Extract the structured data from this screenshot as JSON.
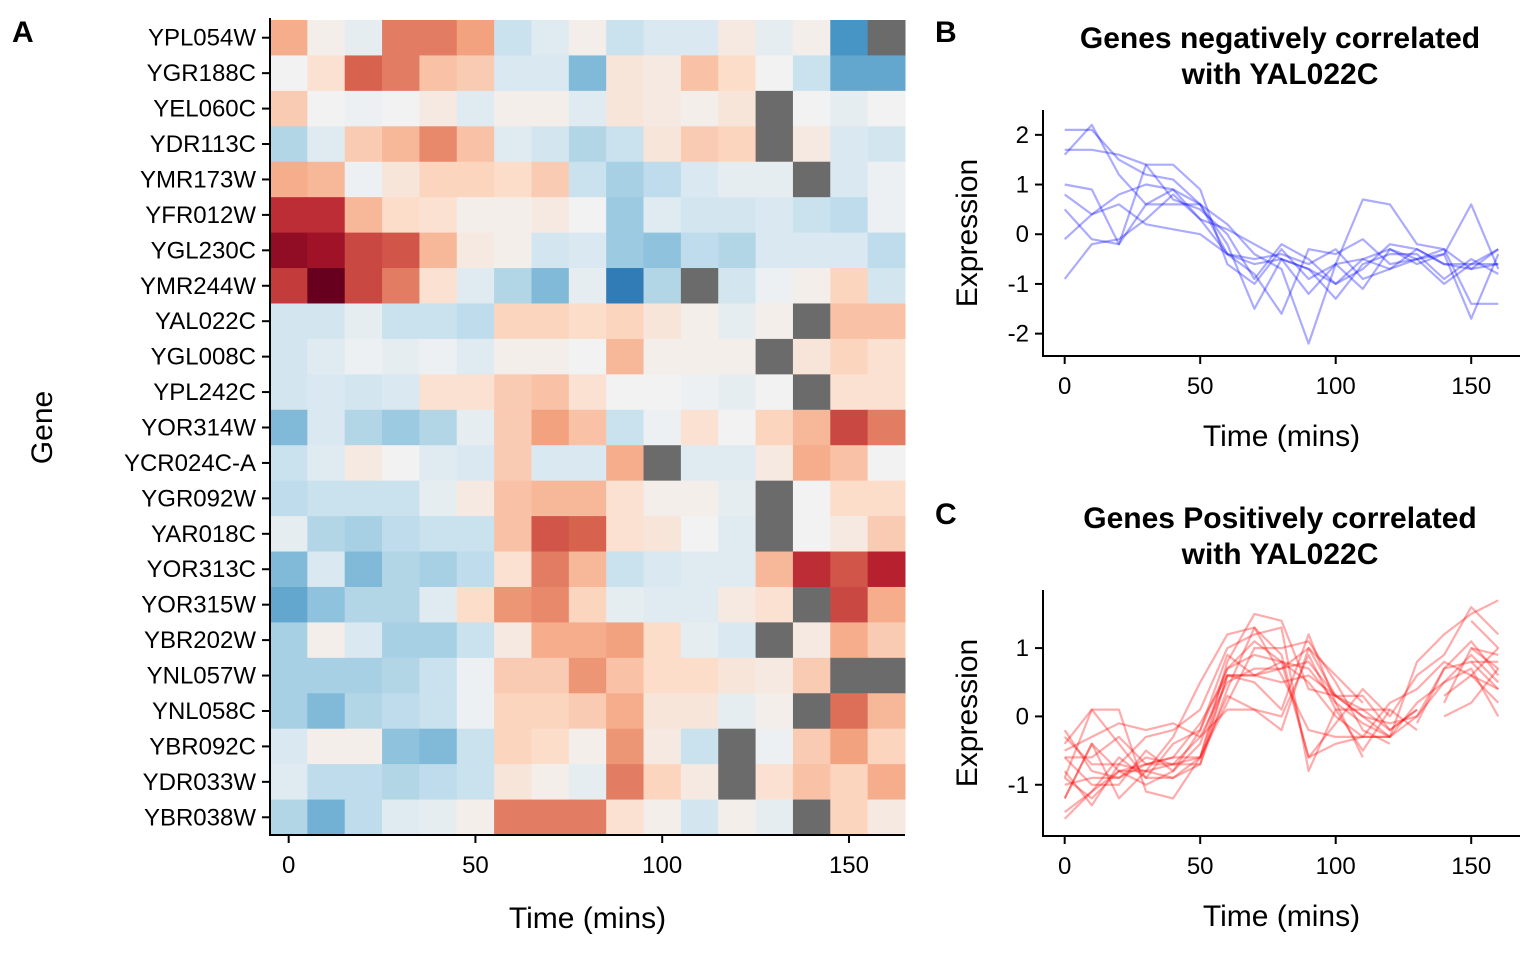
{
  "chart_data": [
    {
      "panel": "A",
      "type": "heatmap",
      "xlabel": "Time (mins)",
      "ylabel": "Gene",
      "x_ticks": [
        0,
        50,
        100,
        150
      ],
      "xlim": [
        -5,
        165
      ],
      "time_points": [
        0,
        10,
        20,
        30,
        40,
        50,
        60,
        70,
        80,
        90,
        100,
        110,
        120,
        130,
        140,
        150,
        160
      ],
      "genes": [
        "YPL054W",
        "YGR188C",
        "YEL060C",
        "YDR113C",
        "YMR173W",
        "YFR012W",
        "YGL230C",
        "YMR244W",
        "YAL022C",
        "YGL008C",
        "YPL242C",
        "YOR314W",
        "YCR024C-A",
        "YGR092W",
        "YAR018C",
        "YOR313C",
        "YOR315W",
        "YBR202W",
        "YNL057W",
        "YNL058C",
        "YBR092C",
        "YDR033W",
        "YBR038W"
      ],
      "missing_color": "#6b6b6b",
      "color_scale": {
        "low": "#1a4f9e",
        "mid": "#f2f2f2",
        "high": "#a50026"
      },
      "values": [
        [
          1.0,
          0.1,
          -0.2,
          1.4,
          1.4,
          1.1,
          -0.6,
          -0.3,
          0.1,
          -0.6,
          -0.4,
          -0.4,
          0.2,
          -0.2,
          0.1,
          -1.6,
          null
        ],
        [
          0.0,
          0.4,
          1.6,
          1.4,
          0.8,
          0.7,
          -0.4,
          -0.4,
          -1.2,
          0.3,
          0.2,
          0.8,
          0.5,
          0.0,
          -0.6,
          -1.4,
          -1.4
        ],
        [
          0.7,
          0.0,
          -0.1,
          0.0,
          0.2,
          -0.3,
          0.1,
          0.1,
          -0.3,
          0.3,
          0.2,
          0.1,
          0.3,
          null,
          0.0,
          -0.2,
          0.0
        ],
        [
          -0.8,
          -0.3,
          0.7,
          0.9,
          1.3,
          0.8,
          -0.3,
          -0.5,
          -0.8,
          -0.6,
          0.3,
          0.7,
          0.6,
          null,
          0.2,
          -0.4,
          -0.5
        ],
        [
          1.0,
          0.9,
          -0.1,
          0.3,
          0.6,
          0.6,
          0.5,
          0.7,
          -0.6,
          -0.9,
          -0.7,
          -0.4,
          -0.2,
          -0.2,
          null,
          -0.4,
          -0.1
        ],
        [
          2.0,
          2.0,
          0.9,
          0.5,
          0.4,
          0.1,
          0.1,
          0.2,
          0.0,
          -1.0,
          -0.3,
          -0.5,
          -0.5,
          -0.4,
          -0.6,
          -0.7,
          -0.1
        ],
        [
          2.4,
          2.3,
          1.8,
          1.7,
          0.9,
          0.2,
          0.1,
          -0.5,
          -0.4,
          -1.0,
          -1.1,
          -0.7,
          -0.8,
          -0.4,
          -0.4,
          -0.4,
          -0.7
        ],
        [
          1.9,
          2.7,
          1.8,
          1.4,
          0.4,
          -0.3,
          -0.8,
          -1.2,
          -0.2,
          -1.9,
          -0.8,
          null,
          -0.5,
          -0.1,
          0.1,
          0.6,
          -0.5
        ],
        [
          -0.5,
          -0.5,
          -0.2,
          -0.6,
          -0.6,
          -0.7,
          0.6,
          0.6,
          0.5,
          0.6,
          0.3,
          0.1,
          -0.2,
          0.1,
          null,
          0.8,
          0.8
        ],
        [
          -0.5,
          -0.3,
          -0.1,
          -0.2,
          -0.1,
          -0.3,
          0.1,
          0.1,
          0.0,
          0.9,
          0.1,
          0.1,
          0.1,
          null,
          0.3,
          0.6,
          0.4
        ],
        [
          -0.5,
          -0.4,
          -0.5,
          -0.4,
          0.4,
          0.4,
          0.7,
          0.8,
          0.4,
          0.0,
          0.0,
          -0.1,
          -0.2,
          0.0,
          null,
          0.4,
          0.4
        ],
        [
          -1.2,
          -0.4,
          -0.8,
          -1.0,
          -0.8,
          -0.2,
          0.7,
          1.1,
          0.8,
          -0.6,
          -0.1,
          0.4,
          0.0,
          0.6,
          0.9,
          1.8,
          1.4
        ],
        [
          -0.6,
          -0.3,
          0.2,
          0.0,
          -0.3,
          -0.4,
          0.7,
          -0.4,
          -0.4,
          1.0,
          null,
          -0.3,
          -0.3,
          0.2,
          1.0,
          0.8,
          0.0
        ],
        [
          -0.7,
          -0.6,
          -0.6,
          -0.6,
          -0.2,
          0.2,
          0.8,
          0.9,
          0.9,
          0.4,
          0.1,
          0.1,
          -0.2,
          null,
          0.0,
          0.5,
          0.5
        ],
        [
          -0.2,
          -0.8,
          -0.9,
          -0.7,
          -0.6,
          -0.6,
          0.8,
          1.7,
          1.6,
          0.4,
          0.3,
          0.0,
          -0.3,
          null,
          0.0,
          0.2,
          0.7
        ],
        [
          -1.2,
          -0.4,
          -1.2,
          -0.8,
          -0.9,
          -0.7,
          0.4,
          1.4,
          0.9,
          -0.6,
          -0.4,
          -0.3,
          -0.3,
          0.9,
          2.0,
          1.7,
          2.1
        ],
        [
          -1.4,
          -1.1,
          -0.8,
          -0.8,
          -0.3,
          0.5,
          1.2,
          1.3,
          0.6,
          -0.2,
          -0.3,
          -0.3,
          0.2,
          0.4,
          null,
          1.8,
          1.0
        ],
        [
          -0.9,
          0.1,
          -0.4,
          -0.9,
          -0.9,
          -0.6,
          0.2,
          1.0,
          1.0,
          1.1,
          0.5,
          -0.2,
          -0.4,
          null,
          0.2,
          1.0,
          0.7
        ],
        [
          -0.9,
          -0.9,
          -0.9,
          -0.8,
          -0.6,
          -0.1,
          0.7,
          0.7,
          1.2,
          0.8,
          0.5,
          0.5,
          0.3,
          0.2,
          0.7,
          null,
          null
        ],
        [
          -0.9,
          -1.2,
          -0.8,
          -0.7,
          -0.6,
          -0.1,
          0.6,
          0.6,
          0.7,
          1.0,
          0.3,
          0.3,
          -0.2,
          0.1,
          null,
          1.5,
          0.9
        ],
        [
          -0.4,
          0.1,
          0.1,
          -1.1,
          -1.2,
          -0.6,
          0.6,
          0.5,
          0.1,
          1.2,
          0.2,
          -0.6,
          null,
          -0.1,
          0.7,
          1.1,
          0.6
        ],
        [
          -0.3,
          -0.7,
          -0.7,
          -0.8,
          -0.7,
          -0.6,
          0.3,
          0.1,
          -0.2,
          1.4,
          0.6,
          0.2,
          null,
          0.4,
          0.8,
          0.6,
          1.0
        ],
        [
          -0.8,
          -1.3,
          -0.7,
          -0.3,
          -0.2,
          0.1,
          1.4,
          1.4,
          1.4,
          0.4,
          0.1,
          -0.5,
          0.1,
          -0.2,
          null,
          0.6,
          0.2
        ]
      ]
    },
    {
      "panel": "B",
      "type": "line",
      "title": "Genes negatively correlated\nwith YAL022C",
      "xlabel": "Time (mins)",
      "ylabel": "Expression",
      "x_ticks": [
        0,
        50,
        100,
        150
      ],
      "y_ticks": [
        -2,
        -1,
        0,
        1,
        2
      ],
      "xlim": [
        -8,
        168
      ],
      "ylim": [
        -2.45,
        2.5
      ],
      "color": "#0000ff",
      "x": [
        0,
        10,
        20,
        30,
        40,
        50,
        60,
        70,
        80,
        90,
        100,
        110,
        120,
        130,
        140,
        150,
        160
      ],
      "series": [
        {
          "values": [
            2.1,
            2.1,
            1.5,
            1.2,
            1.1,
            0.6,
            -0.4,
            -0.6,
            -0.5,
            -1.2,
            -0.6,
            -0.5,
            -0.7,
            -0.3,
            -0.6,
            -0.7,
            -0.3
          ]
        },
        {
          "values": [
            1.7,
            1.7,
            1.6,
            1.4,
            0.7,
            0.5,
            0.0,
            -0.9,
            -0.2,
            -0.5,
            -1.0,
            -0.5,
            -0.3,
            -0.5,
            -0.4,
            -1.7,
            -0.4
          ]
        },
        {
          "values": [
            1.6,
            2.2,
            1.2,
            0.6,
            0.6,
            0.6,
            0.2,
            -0.4,
            -0.7,
            -2.2,
            -0.6,
            -1.1,
            -0.3,
            -0.6,
            -0.4,
            0.6,
            -0.7
          ]
        },
        {
          "values": [
            1.0,
            0.9,
            -0.2,
            1.4,
            1.4,
            0.9,
            -0.6,
            -1.0,
            -0.3,
            -0.9,
            -0.6,
            0.7,
            0.6,
            -0.2,
            -0.3,
            -1.4,
            -1.4
          ]
        },
        {
          "values": [
            0.8,
            0.4,
            0.8,
            1.0,
            0.9,
            0.3,
            0.1,
            -0.2,
            -0.5,
            -0.7,
            -1.0,
            -0.7,
            -0.2,
            -0.3,
            -0.6,
            -0.6,
            -0.6
          ]
        },
        {
          "values": [
            -0.1,
            0.4,
            0.6,
            0.2,
            0.1,
            0.0,
            -0.4,
            -0.5,
            -0.4,
            -0.6,
            -0.3,
            -0.9,
            -0.7,
            -0.5,
            -0.3,
            -0.7,
            -0.6
          ]
        },
        {
          "values": [
            -0.9,
            -0.2,
            -0.1,
            0.3,
            0.8,
            0.3,
            -0.4,
            -0.8,
            -1.6,
            -0.3,
            -0.4,
            -0.1,
            -0.6,
            -0.5,
            -1.0,
            -0.6,
            -0.3
          ]
        },
        {
          "values": [
            0.5,
            -0.1,
            -0.2,
            0.6,
            0.9,
            0.6,
            -0.2,
            -1.5,
            -0.5,
            -0.7,
            -1.3,
            -0.6,
            -0.4,
            -0.4,
            -0.9,
            -0.5,
            -0.8
          ]
        }
      ]
    },
    {
      "panel": "C",
      "type": "line",
      "title": "Genes Positively correlated\nwith YAL022C",
      "xlabel": "Time (mins)",
      "ylabel": "Expression",
      "x_ticks": [
        0,
        50,
        100,
        150
      ],
      "y_ticks": [
        -1,
        0,
        1
      ],
      "xlim": [
        -8,
        168
      ],
      "ylim": [
        -1.75,
        1.85
      ],
      "color": "#ff0000",
      "x": [
        0,
        10,
        20,
        30,
        40,
        50,
        60,
        70,
        80,
        90,
        100,
        110,
        120,
        130,
        140,
        150,
        160
      ],
      "series": [
        {
          "values": [
            -0.6,
            -0.6,
            -0.3,
            -0.7,
            -0.7,
            -0.7,
            0.6,
            0.6,
            0.5,
            0.6,
            0.3,
            0.1,
            -0.2,
            0.1,
            null,
            0.8,
            0.8
          ]
        },
        {
          "values": [
            -0.5,
            -0.3,
            -0.1,
            -0.2,
            -0.1,
            -0.3,
            0.1,
            0.1,
            0.0,
            0.9,
            0.1,
            0.1,
            0.1,
            null,
            0.3,
            0.6,
            0.4
          ]
        },
        {
          "values": [
            -1.2,
            -0.4,
            -0.8,
            -1.0,
            -0.8,
            -0.2,
            0.7,
            1.1,
            0.8,
            -0.6,
            -0.1,
            0.4,
            0.0,
            0.6,
            0.9,
            1.6,
            1.2
          ]
        },
        {
          "values": [
            -0.2,
            -0.8,
            -0.9,
            -0.7,
            -0.6,
            -0.6,
            0.8,
            1.5,
            1.4,
            0.4,
            0.3,
            0.0,
            -0.3,
            null,
            0.0,
            0.2,
            0.7
          ]
        },
        {
          "values": [
            -1.2,
            -0.4,
            -1.2,
            -0.8,
            -0.9,
            -0.7,
            0.4,
            1.3,
            0.9,
            -0.6,
            -0.4,
            -0.3,
            -0.3,
            0.8,
            1.2,
            1.5,
            1.7
          ]
        },
        {
          "values": [
            -1.4,
            -1.1,
            -0.8,
            -0.8,
            -0.3,
            0.5,
            1.2,
            1.3,
            0.6,
            -0.2,
            -0.3,
            -0.3,
            0.2,
            0.4,
            null,
            1.4,
            1.0
          ]
        },
        {
          "values": [
            -0.9,
            0.1,
            -0.4,
            -0.9,
            -0.9,
            -0.6,
            0.2,
            1.0,
            1.0,
            1.1,
            0.5,
            -0.2,
            -0.4,
            null,
            0.2,
            1.0,
            0.7
          ]
        },
        {
          "values": [
            -0.9,
            -1.2,
            -0.8,
            -0.7,
            -0.6,
            -0.1,
            0.6,
            0.6,
            0.7,
            1.0,
            0.3,
            0.3,
            -0.2,
            0.1,
            null,
            1.0,
            0.9
          ]
        },
        {
          "values": [
            -0.4,
            0.1,
            0.1,
            -1.1,
            -1.2,
            -0.6,
            0.6,
            0.5,
            0.1,
            1.2,
            0.2,
            -0.6,
            null,
            -0.1,
            0.7,
            1.1,
            0.6
          ]
        },
        {
          "values": [
            -0.3,
            -0.7,
            -0.7,
            -0.8,
            -0.7,
            -0.6,
            0.3,
            0.1,
            -0.2,
            1.0,
            0.6,
            0.2,
            null,
            0.4,
            0.8,
            0.6,
            1.0
          ]
        },
        {
          "values": [
            -0.8,
            -1.3,
            -0.7,
            -0.3,
            -0.2,
            0.1,
            1.0,
            1.2,
            1.3,
            -0.8,
            0.1,
            -0.5,
            0.1,
            -0.2,
            null,
            0.6,
            0.2
          ]
        },
        {
          "values": [
            -0.6,
            -1.0,
            -1.0,
            -0.5,
            -0.8,
            -0.4,
            0.7,
            0.9,
            0.8,
            0.7,
            0.2,
            -0.1,
            -0.3,
            0.0,
            0.5,
            0.9,
            0.5
          ]
        },
        {
          "values": [
            -1.0,
            -0.9,
            -0.9,
            -0.6,
            -0.7,
            -0.3,
            0.5,
            0.7,
            0.7,
            0.8,
            0.3,
            0.0,
            -0.1,
            0.0,
            0.7,
            0.8,
            0.4
          ]
        },
        {
          "values": [
            -1.5,
            -1.1,
            -0.6,
            -0.9,
            -0.4,
            -0.2,
            0.9,
            0.6,
            0.8,
            0.5,
            0.0,
            -0.3,
            -0.3,
            0.2,
            0.5,
            0.7,
            0.0
          ]
        }
      ]
    }
  ]
}
